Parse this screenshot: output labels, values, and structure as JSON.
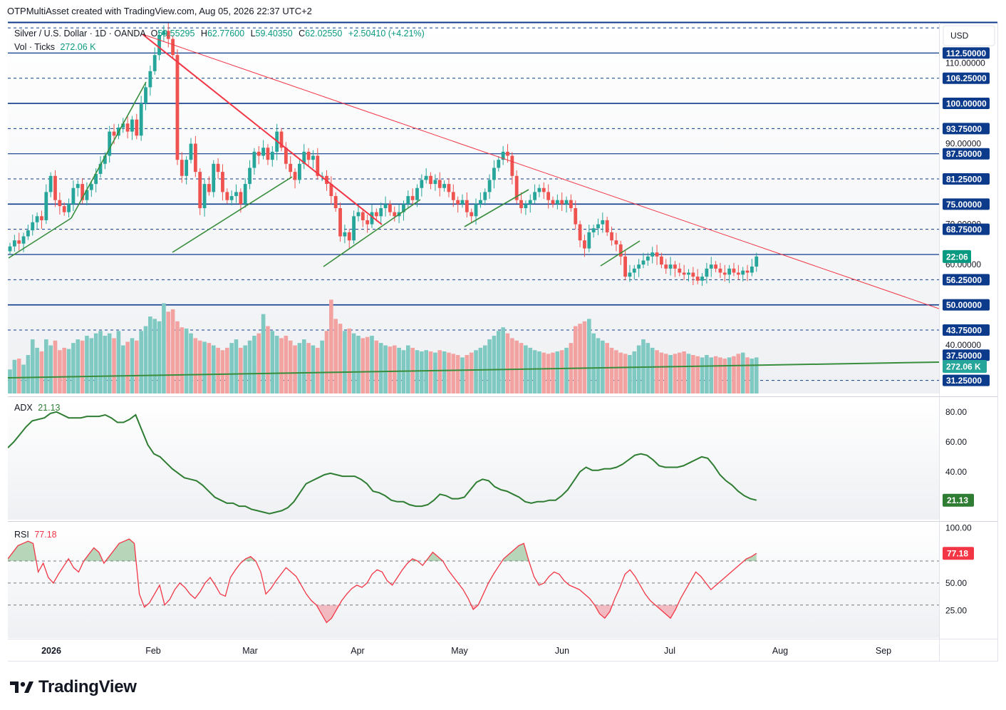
{
  "header": {
    "attribution": "OTPMultiAsset created with TradingView.com, Aug 05, 2026 22:37 UTC+2"
  },
  "legend": {
    "symbol": "Silver / U.S. Dollar · 1D · OANDA",
    "o_label": "O",
    "o": "59.55295",
    "h_label": "H",
    "h": "62.77600",
    "l_label": "L",
    "l": "59.40350",
    "c_label": "C",
    "c": "62.02550",
    "change": "+2.50410 (+4.21%)",
    "vol_label": "Vol · Ticks",
    "vol": "272.06 K"
  },
  "currency": "USD",
  "colors": {
    "up": "#26a69a",
    "down": "#ef5350",
    "adx": "#2e7d32",
    "rsi": "#f23645",
    "navy": "#0d3b8c",
    "trend_green": "#388e3c"
  },
  "chart_data": {
    "type": "candlestick",
    "title": "Silver / U.S. Dollar · 1D · OANDA",
    "x_ticks": [
      "2026",
      "Feb",
      "Mar",
      "Apr",
      "May",
      "Jun",
      "Jul",
      "Aug",
      "Sep"
    ],
    "y_range": [
      28,
      120
    ],
    "price_level_labels": [
      "112.50000",
      "106.25000",
      "100.00000",
      "93.75000",
      "87.50000",
      "81.25000",
      "75.00000",
      "68.75000",
      "56.25000",
      "50.00000",
      "43.75000",
      "37.50000",
      "31.25000"
    ],
    "price_axis_ticks": [
      "110.00000",
      "90.00000",
      "70.00000",
      "60.00000",
      "40.00000"
    ],
    "solid_levels": [
      112.5,
      100,
      87.5,
      75,
      62.5,
      50
    ],
    "dashed_levels": [
      118.75,
      106.25,
      93.75,
      81.25,
      68.75,
      56.25,
      43.75,
      31.25
    ],
    "current_price_tag": "22:06",
    "closes": [
      64.5,
      66.0,
      65.2,
      67.0,
      68.5,
      70.5,
      72.0,
      71.0,
      78.0,
      82.0,
      76.0,
      74.5,
      73.0,
      75.0,
      79.0,
      80.0,
      76.0,
      78.5,
      80.0,
      82.5,
      85.0,
      87.0,
      93.0,
      92.0,
      94.0,
      95.0,
      93.0,
      96.0,
      92.0,
      100.0,
      104.0,
      108.0,
      112.0,
      117.0,
      118.0,
      116.0,
      112.0,
      86.0,
      82.0,
      86.0,
      90.0,
      83.0,
      74.0,
      80.0,
      78.0,
      85.0,
      83.0,
      78.0,
      76.0,
      77.0,
      78.0,
      75.0,
      80.0,
      84.0,
      88.0,
      87.0,
      89.0,
      86.0,
      88.0,
      93.0,
      89.0,
      85.0,
      83.0,
      81.0,
      85.0,
      88.0,
      86.0,
      87.0,
      82.0,
      82.0,
      80.0,
      77.0,
      74.0,
      67.0,
      68.0,
      66.0,
      72.0,
      73.0,
      71.0,
      70.0,
      73.0,
      72.0,
      74.0,
      75.0,
      73.0,
      72.0,
      73.0,
      75.0,
      77.0,
      76.0,
      79.0,
      81.0,
      82.0,
      80.0,
      81.0,
      79.0,
      80.0,
      78.0,
      76.0,
      75.0,
      76.0,
      73.0,
      72.0,
      75.0,
      76.0,
      78.0,
      81.0,
      84.0,
      86.0,
      88.0,
      87.0,
      82.0,
      76.0,
      74.0,
      75.0,
      76.0,
      78.0,
      79.0,
      78.0,
      76.0,
      75.0,
      76.0,
      75.0,
      76.0,
      74.0,
      70.0,
      66.0,
      64.0,
      68.0,
      69.0,
      70.0,
      71.0,
      68.0,
      66.0,
      65.0,
      62.0,
      57.0,
      58.0,
      59.0,
      60.0,
      61.0,
      62.0,
      63.0,
      62.0,
      60.0,
      59.0,
      60.0,
      59.0,
      58.0,
      57.5,
      58.0,
      57.0,
      56.0,
      57.0,
      59.0,
      60.0,
      59.0,
      58.0,
      57.5,
      59.0,
      58.0,
      57.5,
      58.5,
      58.0,
      59.5,
      62.0
    ]
  },
  "volume": {
    "label": "Vol · Ticks",
    "tag": "272.06 K",
    "values": [
      20,
      28,
      29,
      24,
      32,
      45,
      38,
      35,
      45,
      40,
      44,
      36,
      38,
      37,
      42,
      45,
      44,
      48,
      46,
      50,
      52,
      48,
      50,
      46,
      52,
      40,
      43,
      46,
      44,
      52,
      56,
      64,
      62,
      60,
      75,
      68,
      70,
      60,
      55,
      54,
      50,
      46,
      44,
      43,
      42,
      40,
      38,
      36,
      38,
      42,
      45,
      38,
      40,
      44,
      48,
      50,
      66,
      56,
      52,
      48,
      46,
      48,
      44,
      40,
      42,
      45,
      42,
      40,
      38,
      44,
      52,
      78,
      62,
      58,
      52,
      54,
      50,
      48,
      46,
      47,
      48,
      44,
      42,
      40,
      39,
      40,
      38,
      36,
      40,
      38,
      36,
      35,
      36,
      35,
      34,
      36,
      35,
      34,
      33,
      32,
      30,
      32,
      34,
      36,
      38,
      40,
      45,
      48,
      52,
      55,
      50,
      46,
      44,
      42,
      40,
      38,
      36,
      35,
      34,
      33,
      34,
      35,
      36,
      38,
      42,
      56,
      58,
      60,
      62,
      50,
      46,
      44,
      42,
      38,
      36,
      34,
      33,
      32,
      35,
      40,
      45,
      42,
      38,
      36,
      34,
      33,
      32,
      33,
      34,
      35,
      33,
      32,
      31,
      30,
      32,
      30,
      31,
      30,
      29,
      30,
      31,
      33,
      34,
      30,
      29,
      30,
      33,
      34,
      30,
      30,
      28,
      26
    ]
  },
  "adx": {
    "label": "ADX",
    "value_text": "21.13",
    "y_range": [
      8,
      88
    ],
    "ticks": [
      "80.00",
      "60.00",
      "40.00"
    ],
    "values": [
      56,
      60,
      65,
      70,
      74,
      75,
      76,
      79,
      80,
      78,
      76,
      76,
      76,
      77,
      77,
      77,
      78,
      76,
      73,
      73,
      75,
      78,
      68,
      58,
      52,
      50,
      46,
      42,
      39,
      36,
      35,
      34,
      31,
      27,
      23,
      21,
      19,
      19,
      17,
      17,
      15,
      14,
      13,
      12,
      13,
      14,
      16,
      20,
      26,
      32,
      34,
      36,
      38,
      39,
      38,
      37,
      37,
      37,
      35,
      32,
      27,
      26,
      24,
      21,
      20,
      20,
      18,
      17,
      17,
      18,
      21,
      25,
      24,
      22,
      22,
      23,
      28,
      33,
      35,
      34,
      30,
      28,
      27,
      25,
      23,
      20,
      19,
      20,
      20,
      21,
      21,
      24,
      28,
      34,
      40,
      43,
      41,
      41,
      42,
      42,
      43,
      45,
      48,
      51,
      52,
      51,
      48,
      44,
      43,
      43,
      43,
      44,
      46,
      48,
      50,
      49,
      44,
      38,
      34,
      31,
      27,
      24,
      22,
      21
    ]
  },
  "rsi": {
    "label": "RSI",
    "value_text": "77.18",
    "y_range": [
      0,
      105
    ],
    "ticks": [
      "100.00",
      "50.00",
      "25.00"
    ],
    "overbought": 70,
    "oversold": 30,
    "values": [
      72,
      78,
      84,
      86,
      88,
      86,
      60,
      68,
      55,
      50,
      58,
      65,
      72,
      64,
      60,
      70,
      76,
      82,
      78,
      68,
      74,
      80,
      86,
      88,
      90,
      86,
      40,
      28,
      32,
      40,
      48,
      30,
      35,
      44,
      50,
      46,
      40,
      36,
      42,
      50,
      55,
      48,
      40,
      38,
      55,
      62,
      68,
      72,
      74,
      70,
      60,
      40,
      45,
      52,
      58,
      64,
      60,
      56,
      48,
      40,
      34,
      30,
      22,
      14,
      18,
      26,
      34,
      40,
      45,
      48,
      46,
      50,
      58,
      62,
      60,
      52,
      48,
      55,
      62,
      68,
      72,
      70,
      66,
      72,
      78,
      74,
      70,
      62,
      56,
      50,
      44,
      36,
      26,
      30,
      40,
      50,
      58,
      65,
      72,
      76,
      80,
      84,
      86,
      70,
      56,
      48,
      50,
      56,
      60,
      58,
      52,
      48,
      46,
      44,
      40,
      36,
      30,
      22,
      18,
      24,
      36,
      46,
      58,
      62,
      56,
      48,
      40,
      34,
      30,
      26,
      22,
      18,
      26,
      36,
      44,
      52,
      60,
      56,
      50,
      44,
      48,
      52,
      56,
      60,
      64,
      68,
      72,
      74,
      77
    ]
  }
}
